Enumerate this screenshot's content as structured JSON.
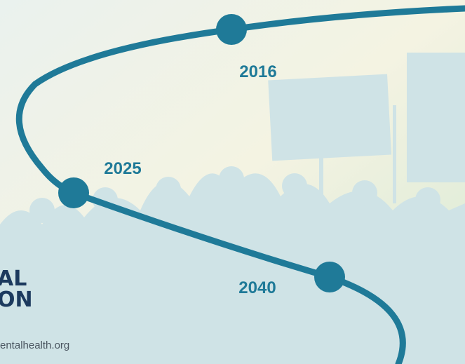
{
  "timeline": {
    "milestones": [
      {
        "year": "2016"
      },
      {
        "year": "2025"
      },
      {
        "year": "2040"
      }
    ]
  },
  "logo": {
    "lines": [
      "AL",
      "ON"
    ]
  },
  "url": "entalhealth.org"
}
